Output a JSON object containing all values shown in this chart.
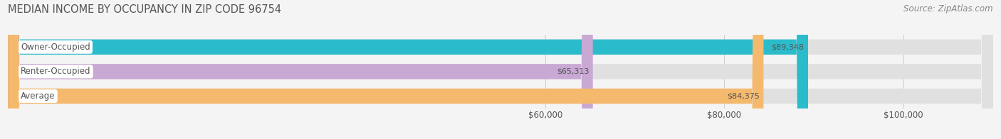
{
  "title": "MEDIAN INCOME BY OCCUPANCY IN ZIP CODE 96754",
  "source": "Source: ZipAtlas.com",
  "categories": [
    "Owner-Occupied",
    "Renter-Occupied",
    "Average"
  ],
  "values": [
    89348,
    65313,
    84375
  ],
  "bar_colors": [
    "#2bbccc",
    "#c9a8d4",
    "#f5b96e"
  ],
  "value_labels": [
    "$89,348",
    "$65,313",
    "$84,375"
  ],
  "xlim_min": 0,
  "xlim_max": 110000,
  "xticks": [
    60000,
    80000,
    100000
  ],
  "xtick_labels": [
    "$60,000",
    "$80,000",
    "$100,000"
  ],
  "bg_color": "#f4f4f4",
  "bar_bg_color": "#e0e0e0",
  "title_fontsize": 10.5,
  "source_fontsize": 8.5,
  "label_fontsize": 8.5,
  "value_fontsize": 8.0,
  "bar_height": 0.62,
  "title_color": "#555555",
  "source_color": "#888888",
  "label_color": "#555555",
  "value_color": "#555555",
  "grid_color": "#cccccc",
  "white_label_bg": "white"
}
